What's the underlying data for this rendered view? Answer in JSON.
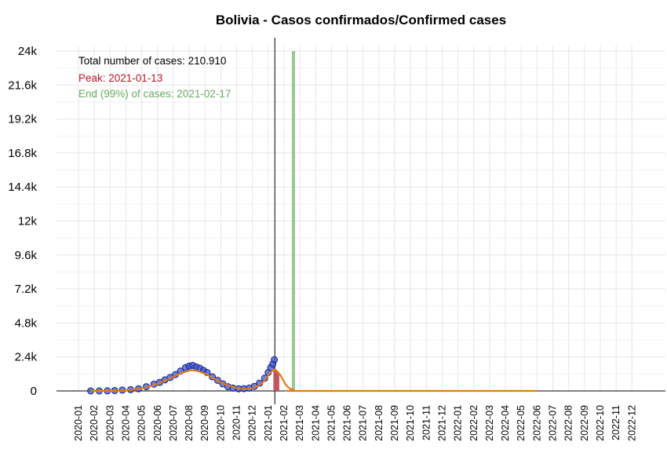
{
  "chart_data": {
    "type": "line",
    "title": "Bolivia - Casos confirmados/Confirmed cases",
    "xlabel": "",
    "ylabel": "",
    "ylim": [
      0,
      24000
    ],
    "y_ticks": [
      0,
      2400,
      4800,
      7200,
      9600,
      12000,
      14400,
      16800,
      19200,
      21600,
      24000
    ],
    "y_tick_labels": [
      "0",
      "2.4k",
      "4.8k",
      "7.2k",
      "9.6k",
      "12k",
      "14.4k",
      "16.8k",
      "19.2k",
      "21.6k",
      "24k"
    ],
    "x_tick_labels": [
      "2020-01",
      "2020-02",
      "2020-03",
      "2020-04",
      "2020-05",
      "2020-06",
      "2020-07",
      "2020-08",
      "2020-09",
      "2020-10",
      "2020-11",
      "2020-12",
      "2021-01",
      "2021-02",
      "2021-03",
      "2021-04",
      "2021-05",
      "2021-06",
      "2021-07",
      "2021-08",
      "2021-09",
      "2021-10",
      "2021-11",
      "2021-12",
      "2022-01",
      "2022-02",
      "2022-03",
      "2022-04",
      "2022-05",
      "2022-06",
      "2022-07",
      "2022-08",
      "2022-09",
      "2022-10",
      "2022-11",
      "2022-12"
    ],
    "grid": true,
    "annotations": {
      "total": "Total number of cases: 210.910",
      "peak": "Peak: 2021-01-13",
      "end": "End (99%) of cases: 2021-02-17"
    },
    "colors": {
      "observed_points": "#3b55d6",
      "observed_edge": "#1a237e",
      "fit_line": "#e07b1a",
      "peak_bars": "#c0505a",
      "peak_text": "#b2182b",
      "end_bar": "#8fc18a",
      "end_text": "#6aaa64",
      "today_line": "#000000",
      "grid": "#e6e6e6"
    },
    "vertical_markers": {
      "today": "2021-01-14",
      "end": "2021-02-17"
    },
    "series": [
      {
        "kind": "observed",
        "x": [
          "2020-01-25",
          "2020-02-10",
          "2020-02-25",
          "2020-03-10",
          "2020-03-25",
          "2020-04-10",
          "2020-04-25",
          "2020-05-10",
          "2020-05-25",
          "2020-06-05",
          "2020-06-15",
          "2020-06-25",
          "2020-07-05",
          "2020-07-15",
          "2020-07-25",
          "2020-08-01",
          "2020-08-08",
          "2020-08-15",
          "2020-08-22",
          "2020-08-29",
          "2020-09-05",
          "2020-09-15",
          "2020-09-25",
          "2020-10-05",
          "2020-10-15",
          "2020-10-25",
          "2020-11-05",
          "2020-11-15",
          "2020-11-25",
          "2020-12-05",
          "2020-12-15",
          "2020-12-25",
          "2021-01-01",
          "2021-01-06",
          "2021-01-10",
          "2021-01-13"
        ],
        "y": [
          0,
          0,
          5,
          30,
          60,
          90,
          150,
          300,
          480,
          600,
          780,
          950,
          1150,
          1400,
          1650,
          1750,
          1800,
          1700,
          1600,
          1450,
          1300,
          1000,
          750,
          500,
          300,
          200,
          150,
          160,
          200,
          320,
          550,
          900,
          1300,
          1650,
          1900,
          2200
        ]
      },
      {
        "kind": "fit",
        "x": [
          "2020-01-25",
          "2020-03-01",
          "2020-04-01",
          "2020-05-01",
          "2020-06-01",
          "2020-07-01",
          "2020-07-20",
          "2020-08-05",
          "2020-08-20",
          "2020-09-10",
          "2020-10-01",
          "2020-10-20",
          "2020-11-10",
          "2020-12-01",
          "2020-12-20",
          "2021-01-01",
          "2021-01-13",
          "2021-01-25",
          "2021-02-05",
          "2021-02-17",
          "2021-03-01",
          "2022-01-01",
          "2022-06-01"
        ],
        "y": [
          0,
          5,
          40,
          170,
          500,
          1000,
          1300,
          1450,
          1380,
          1050,
          600,
          330,
          150,
          200,
          550,
          1100,
          1500,
          1100,
          400,
          60,
          0,
          0,
          0
        ]
      }
    ],
    "peak_bars": {
      "x": [
        "2021-01-13",
        "2021-01-15",
        "2021-01-17",
        "2021-01-19",
        "2021-01-21"
      ],
      "y": [
        1500,
        1480,
        1420,
        1320,
        1200
      ]
    }
  }
}
